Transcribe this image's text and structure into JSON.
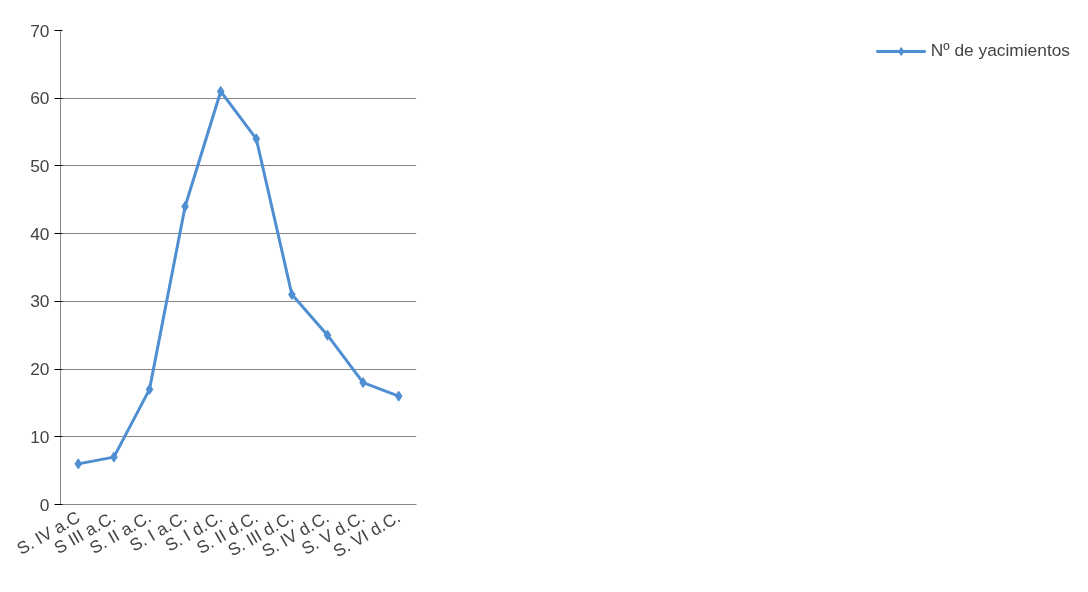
{
  "chart_data": {
    "type": "line",
    "categories": [
      "S. IV a.C",
      "S III a.C.",
      "S. II a.C.",
      "S. I a.C.",
      "S. I d.C.",
      "S. II d.C.",
      "S. III d.C.",
      "S. IV d.C.",
      "S. V d.C.",
      "S. VI d.C."
    ],
    "series": [
      {
        "name": "Nº de yacimientos",
        "color": "#4f8ed0",
        "values": [
          6,
          7,
          17,
          44,
          61,
          54,
          31,
          25,
          18,
          16
        ]
      }
    ],
    "ylim": [
      0,
      70
    ],
    "yticks": [
      0,
      10,
      20,
      30,
      40,
      50,
      60,
      70
    ],
    "grid": "y",
    "legend": "right",
    "marker": "diamond",
    "line_style": "solid"
  }
}
